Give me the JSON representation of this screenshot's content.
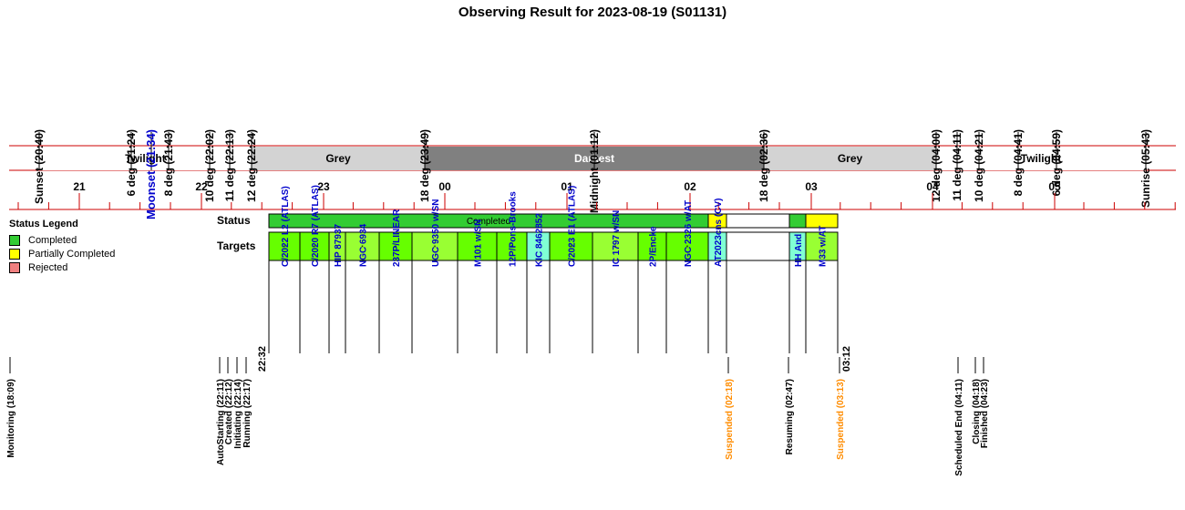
{
  "title": "Observing Result for 2023-08-19 (S01131)",
  "time_labels": [
    {
      "text": "Sunset (20:40)",
      "color": "#000000"
    },
    {
      "text": "6 deg (21:24)",
      "color": "#000000"
    },
    {
      "text": "Moonset (21:34)",
      "color": "#0000cc"
    },
    {
      "text": "8 deg (21:43)",
      "color": "#000000"
    },
    {
      "text": "10 deg (22:02)",
      "color": "#000000"
    },
    {
      "text": "11 deg (22:13)",
      "color": "#000000"
    },
    {
      "text": "12 deg (22:24)",
      "color": "#000000"
    },
    {
      "text": "18 deg (23:49)",
      "color": "#000000"
    },
    {
      "text": "Midnight (01:12)",
      "color": "#000000"
    },
    {
      "text": "18 deg (02:36)",
      "color": "#000000"
    },
    {
      "text": "12 deg (04:00)",
      "color": "#000000"
    },
    {
      "text": "11 deg (04:11)",
      "color": "#000000"
    },
    {
      "text": "10 deg (04:21)",
      "color": "#000000"
    },
    {
      "text": "8 deg (04:41)",
      "color": "#000000"
    },
    {
      "text": "6 deg (04:59)",
      "color": "#000000"
    },
    {
      "text": "Sunrise (05:43)",
      "color": "#000000"
    }
  ],
  "bands": [
    {
      "label": "Twilight",
      "color": "#ffffff",
      "text_color": "#000000"
    },
    {
      "label": "Grey",
      "color": "#d3d3d3",
      "text_color": "#000000"
    },
    {
      "label": "Darkest",
      "color": "#808080",
      "text_color": "#ffffff"
    },
    {
      "label": "Grey",
      "color": "#d3d3d3",
      "text_color": "#000000"
    },
    {
      "label": "Twilight",
      "color": "#ffffff",
      "text_color": "#000000"
    }
  ],
  "hours": [
    "21",
    "22",
    "23",
    "00",
    "01",
    "02",
    "03",
    "04",
    "05"
  ],
  "legend": {
    "title": "Status Legend",
    "items": [
      {
        "label": "Completed",
        "color": "#33cc33"
      },
      {
        "label": "Partially Completed",
        "color": "#ffff00"
      },
      {
        "label": "Rejected",
        "color": "#f08080"
      }
    ]
  },
  "status_row": {
    "label": "Status",
    "segments": [
      {
        "label": "Completed",
        "color": "#33cc33"
      },
      {
        "label": "",
        "color": "#ffff00"
      },
      {
        "label": "",
        "color": "#ffffff"
      },
      {
        "label": "",
        "color": "#33cc33"
      },
      {
        "label": "",
        "color": "#ffff00"
      }
    ]
  },
  "targets_row": {
    "label": "Targets",
    "start_label": "22:32",
    "end_label": "03:12",
    "targets": [
      {
        "name": "C/2022 L2 (ATLAS)",
        "color": "#66ff00",
        "mark": "*"
      },
      {
        "name": "C/2020 R7 (ATLAS)",
        "color": "#66ff00",
        "mark": "*"
      },
      {
        "name": "HIP 87937",
        "color": "#99ff33",
        "mark": "*"
      },
      {
        "name": "NGC 6934",
        "color": "#99ff33",
        "mark": "*"
      },
      {
        "name": "237P/LINEAR",
        "color": "#66ff00",
        "mark": "*"
      },
      {
        "name": "UGC 9350 w/SN",
        "color": "#99ff33",
        "mark": "*"
      },
      {
        "name": "M101 w/SN",
        "color": "#66ff00",
        "mark": "*"
      },
      {
        "name": "12P/Pons-Brooks",
        "color": "#66ff00",
        "mark": "*"
      },
      {
        "name": "KIC 8462852",
        "color": "#80ffd4",
        "mark": ""
      },
      {
        "name": "C/2023 E1 (ATLAS)",
        "color": "#66ff00",
        "mark": "*"
      },
      {
        "name": "IC 1797 w/SN",
        "color": "#99ff33",
        "mark": "*"
      },
      {
        "name": "2P/Encke",
        "color": "#66ff00",
        "mark": "*"
      },
      {
        "name": "NGC 2326 w/AT",
        "color": "#66ff00",
        "mark": "*"
      },
      {
        "name": "AT2023cns (CV)",
        "color": "#80ffd4",
        "mark": ""
      },
      {
        "name": "",
        "color": "#ffffff",
        "mark": ""
      },
      {
        "name": "HH And",
        "color": "#80ffd4",
        "mark": ""
      },
      {
        "name": "M33 w/AT",
        "color": "#99ff33",
        "mark": "*"
      }
    ]
  },
  "events": [
    {
      "text": "Monitoring (18:09)",
      "color": "#000000"
    },
    {
      "text": "AutoStarting (22:11)",
      "color": "#000000"
    },
    {
      "text": "Created (22:12)",
      "color": "#000000"
    },
    {
      "text": "Initiating (22:14)",
      "color": "#000000"
    },
    {
      "text": "Running (22:17)",
      "color": "#000000"
    },
    {
      "text": "Suspended (02:18)",
      "color": "#ff8c00"
    },
    {
      "text": "Resuming (02:47)",
      "color": "#000000"
    },
    {
      "text": "Suspended (03:13)",
      "color": "#ff8c00"
    },
    {
      "text": "Scheduled End (04:11)",
      "color": "#000000"
    },
    {
      "text": "Closing (04:18)",
      "color": "#000000"
    },
    {
      "text": "Finished (04:23)",
      "color": "#000000"
    }
  ],
  "colors": {
    "axis_line": "#cc0000",
    "target_name": "#0000cc"
  }
}
